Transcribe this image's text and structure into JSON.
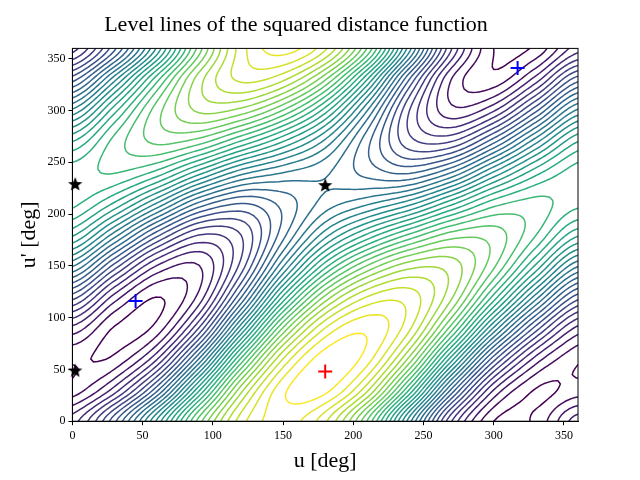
{
  "chart_data": {
    "type": "contour",
    "title": "Level lines of the squared distance function",
    "x_label": "u [deg]",
    "y_label": "u' [deg]",
    "x": [
      0,
      30,
      60,
      90,
      120,
      150,
      180,
      210,
      240,
      270,
      300,
      330,
      360
    ],
    "y": [
      0,
      30,
      60,
      90,
      120,
      150,
      180,
      210,
      240,
      270,
      300,
      330,
      360
    ],
    "z": [
      [
        1.14,
        2.44,
        4.29,
        6.36,
        7.88,
        8.36,
        7.8,
        6.23,
        3.85,
        1.51,
        0.25,
        0.31,
        1.14
      ],
      [
        0.36,
        1.12,
        2.67,
        4.94,
        7.15,
        8.44,
        8.57,
        7.55,
        5.47,
        2.93,
        0.99,
        0.23,
        0.36
      ],
      [
        0.29,
        0.31,
        1.22,
        3.26,
        5.79,
        7.76,
        8.64,
        8.36,
        6.91,
        4.61,
        2.35,
        0.9,
        0.29
      ],
      [
        0.93,
        0.23,
        0.34,
        1.75,
        4.17,
        6.52,
        8.0,
        8.44,
        7.8,
        6.12,
        3.97,
        2.15,
        0.93
      ],
      [
        2.12,
        0.9,
        0.25,
        0.83,
        2.72,
        5.04,
        6.81,
        7.76,
        7.88,
        7.04,
        5.41,
        3.63,
        2.12
      ],
      [
        3.53,
        2.15,
        0.99,
        0.74,
        1.84,
        3.71,
        5.4,
        6.52,
        7.15,
        7.13,
        6.3,
        4.95,
        3.53
      ],
      [
        4.8,
        3.63,
        2.35,
        1.51,
        1.75,
        2.91,
        4.14,
        5.04,
        5.79,
        6.36,
        6.38,
        5.76,
        4.8
      ],
      [
        5.57,
        4.95,
        3.97,
        2.93,
        2.49,
        2.83,
        3.36,
        3.71,
        4.17,
        4.94,
        5.65,
        5.84,
        5.57
      ],
      [
        5.64,
        5.76,
        5.41,
        4.61,
        3.85,
        3.5,
        3.29,
        2.91,
        2.72,
        3.26,
        4.29,
        5.16,
        5.64
      ],
      [
        5.0,
        5.84,
        6.3,
        6.12,
        5.47,
        4.75,
        3.93,
        2.83,
        1.84,
        1.75,
        2.67,
        3.92,
        5.0
      ],
      [
        3.81,
        5.16,
        6.38,
        7.04,
        6.91,
        6.23,
        5.12,
        3.5,
        1.75,
        0.83,
        1.22,
        2.44,
        3.81
      ],
      [
        2.4,
        3.92,
        5.65,
        7.13,
        7.8,
        7.55,
        6.53,
        4.75,
        2.49,
        0.74,
        0.34,
        1.12,
        2.4
      ],
      [
        1.14,
        2.44,
        4.29,
        6.36,
        7.88,
        8.36,
        7.8,
        6.23,
        3.85,
        1.51,
        0.25,
        0.31,
        1.14
      ]
    ],
    "levels": [
      0.25,
      0.5,
      0.75,
      1,
      1.25,
      1.5,
      1.75,
      2,
      2.25,
      2.5,
      2.75,
      3,
      3.25,
      3.5,
      3.75,
      4,
      4.25,
      4.5,
      4.75,
      5,
      5.25,
      5.5,
      5.75,
      6,
      6.25,
      6.5,
      6.75,
      7,
      7.25,
      7.5,
      7.75,
      8,
      8.25,
      8.5
    ],
    "color": "viridis",
    "points": [
      {
        "x": [
          2,
          180,
          2
        ],
        "y": [
          229,
          228,
          49
        ],
        "marker": "star",
        "color": "#000000"
      },
      {
        "x": [
          45,
          317
        ],
        "y": [
          116,
          341
        ],
        "marker": "cross",
        "color": "#0000ff"
      },
      {
        "x": [
          180
        ],
        "y": [
          48
        ],
        "marker": "cross",
        "color": "#ff0000"
      }
    ],
    "xlim": [
      0,
      360
    ],
    "ylim": [
      0,
      360
    ],
    "xticks": [
      0,
      50,
      100,
      150,
      200,
      250,
      300,
      350
    ],
    "yticks": [
      0,
      50,
      100,
      150,
      200,
      250,
      300,
      350
    ],
    "grid": false
  }
}
